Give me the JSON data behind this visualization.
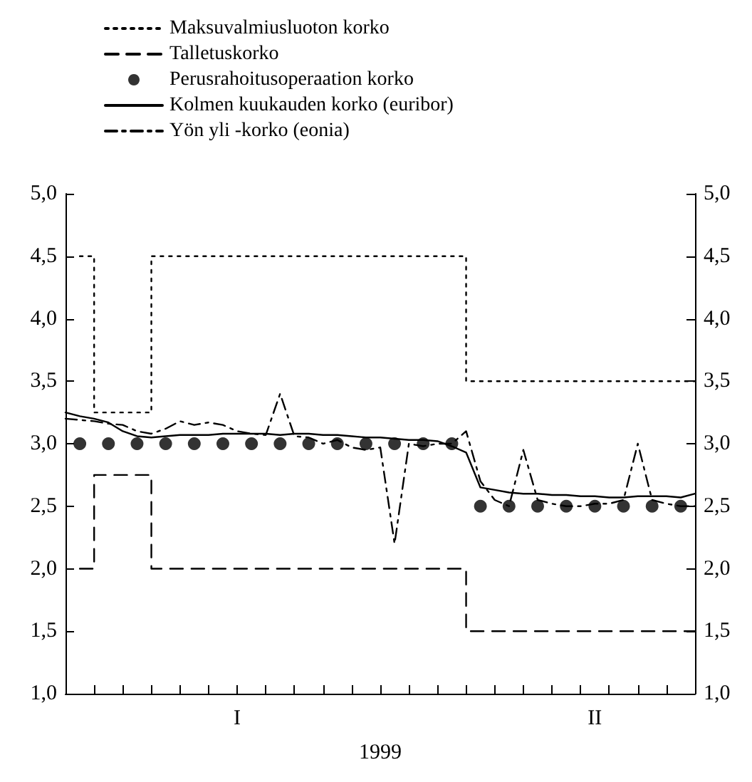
{
  "chart_data": {
    "type": "line",
    "xlabel": "1999",
    "categories": [
      null,
      null,
      null,
      null,
      null,
      null,
      null,
      null,
      null,
      null,
      null,
      null,
      "I",
      null,
      null,
      null,
      null,
      null,
      null,
      null,
      null,
      null,
      null,
      null,
      null,
      null,
      null,
      null,
      null,
      null,
      null,
      null,
      null,
      null,
      null,
      null,
      null,
      "II",
      null,
      null,
      null,
      null,
      null,
      null,
      null
    ],
    "ylim": [
      1,
      5
    ],
    "yticks": [
      {
        "value": 1,
        "label": "1,0"
      },
      {
        "value": 1.5,
        "label": "1,5"
      },
      {
        "value": 2,
        "label": "2,0"
      },
      {
        "value": 2.5,
        "label": "2,5"
      },
      {
        "value": 3,
        "label": "3,0"
      },
      {
        "value": 3.5,
        "label": "3,5"
      },
      {
        "value": 4,
        "label": "4,0"
      },
      {
        "value": 4.5,
        "label": "4,5"
      },
      {
        "value": 5,
        "label": "5,0"
      }
    ],
    "y2lim": [
      1,
      5
    ],
    "y2ticks": [
      {
        "value": 1,
        "label": "1,0"
      },
      {
        "value": 1.5,
        "label": "1,5"
      },
      {
        "value": 2,
        "label": "2,0"
      },
      {
        "value": 2.5,
        "label": "2,5"
      },
      {
        "value": 3,
        "label": "3,0"
      },
      {
        "value": 3.5,
        "label": "3,5"
      },
      {
        "value": 4,
        "label": "4,0"
      },
      {
        "value": 4.5,
        "label": "4,5"
      },
      {
        "value": 5,
        "label": "5,0"
      }
    ],
    "grid": false,
    "legend": "top",
    "series": [
      {
        "name": "Maksuvalmiusluoton korko",
        "type": "step",
        "line_style": "dotted",
        "color": "#000000",
        "values": [
          null,
          4.5,
          3.25,
          3.25,
          3.25,
          3.25,
          4.5,
          4.5,
          4.5,
          4.5,
          4.5,
          4.5,
          4.5,
          4.5,
          4.5,
          4.5,
          4.5,
          4.5,
          4.5,
          4.5,
          4.5,
          4.5,
          4.5,
          4.5,
          4.5,
          4.5,
          4.5,
          4.5,
          3.5,
          3.5,
          3.5,
          3.5,
          3.5,
          3.5,
          3.5,
          3.5,
          3.5,
          3.5,
          3.5,
          3.5,
          3.5,
          3.5,
          3.5,
          3.5,
          3.5
        ]
      },
      {
        "name": "Talletuskorko",
        "type": "step",
        "line_style": "dashed",
        "color": "#000000",
        "values": [
          null,
          2.0,
          2.75,
          2.75,
          2.75,
          2.75,
          2.0,
          2.0,
          2.0,
          2.0,
          2.0,
          2.0,
          2.0,
          2.0,
          2.0,
          2.0,
          2.0,
          2.0,
          2.0,
          2.0,
          2.0,
          2.0,
          2.0,
          2.0,
          2.0,
          2.0,
          2.0,
          2.0,
          1.5,
          1.5,
          1.5,
          1.5,
          1.5,
          1.5,
          1.5,
          1.5,
          1.5,
          1.5,
          1.5,
          1.5,
          1.5,
          1.5,
          1.5,
          1.5,
          1.5
        ]
      },
      {
        "name": "Perusrahoitusoperaation korko",
        "type": "scatter",
        "marker": "circle",
        "color": "#000000",
        "values": [
          null,
          3,
          null,
          3,
          null,
          3,
          null,
          3,
          null,
          3,
          null,
          3,
          null,
          3,
          null,
          3,
          null,
          3,
          null,
          3,
          null,
          3,
          null,
          3,
          null,
          3,
          null,
          3,
          null,
          2.5,
          null,
          2.5,
          null,
          2.5,
          null,
          2.5,
          null,
          2.5,
          null,
          2.5,
          null,
          2.5,
          null,
          2.5,
          null
        ]
      },
      {
        "name": "Kolmen kuukauden korko (euribor)",
        "line_style": "solid",
        "color": "#000000",
        "values": [
          3.25,
          3.22,
          3.2,
          3.17,
          3.1,
          3.06,
          3.05,
          3.06,
          3.07,
          3.07,
          3.07,
          3.08,
          3.08,
          3.08,
          3.08,
          3.07,
          3.08,
          3.08,
          3.07,
          3.07,
          3.06,
          3.05,
          3.05,
          3.04,
          3.03,
          3.03,
          3.02,
          2.98,
          2.93,
          2.65,
          2.63,
          2.61,
          2.6,
          2.6,
          2.59,
          2.59,
          2.58,
          2.58,
          2.57,
          2.57,
          2.58,
          2.58,
          2.58,
          2.57,
          2.6
        ]
      },
      {
        "name": "Yön yli -korko (eonia)",
        "line_style": "dashdot",
        "color": "#000000",
        "values": [
          3.2,
          3.19,
          3.18,
          3.16,
          3.15,
          3.1,
          3.08,
          3.12,
          3.18,
          3.15,
          3.17,
          3.15,
          3.1,
          3.08,
          3.07,
          3.4,
          3.06,
          3.05,
          3.0,
          3.03,
          2.97,
          2.95,
          2.97,
          2.2,
          3.0,
          2.98,
          3.0,
          3.0,
          3.1,
          2.7,
          2.55,
          2.5,
          2.95,
          2.55,
          2.52,
          2.5,
          2.5,
          2.52,
          2.52,
          2.55,
          3.0,
          2.55,
          2.52,
          2.5,
          2.5
        ]
      }
    ]
  }
}
